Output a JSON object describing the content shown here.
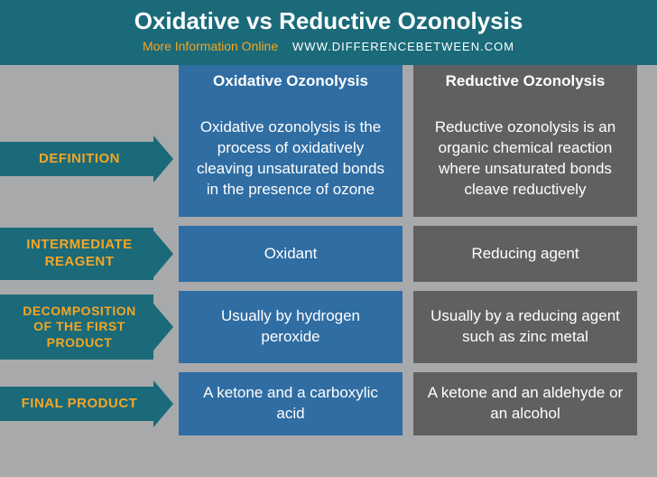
{
  "header": {
    "title": "Oxidative vs Reductive Ozonolysis",
    "tagline": "More Information Online",
    "url": "WWW.DIFFERENCEBETWEEN.COM"
  },
  "columns": {
    "oxidative": "Oxidative Ozonolysis",
    "reductive": "Reductive Ozonolysis"
  },
  "rows": [
    {
      "label": "DEFINITION",
      "ox": "Oxidative ozonolysis is the process of oxidatively cleaving unsaturated bonds in the presence of ozone",
      "red": "Reductive ozonolysis is an organic chemical reaction where unsaturated bonds cleave reductively"
    },
    {
      "label": "INTERMEDIATE REAGENT",
      "ox": "Oxidant",
      "red": "Reducing agent"
    },
    {
      "label": "DECOMPOSITION OF THE FIRST PRODUCT",
      "ox": "Usually by hydrogen peroxide",
      "red": "Usually by a reducing agent such as zinc metal"
    },
    {
      "label": "FINAL PRODUCT",
      "ox": "A ketone and a carboxylic acid",
      "red": "A ketone and an aldehyde or an alcohol"
    }
  ],
  "colors": {
    "header_bg": "#1a6a7a",
    "accent": "#f5a623",
    "ox_bg": "#2f6da3",
    "red_bg": "#5f6062",
    "page_bg": "#a8a9ab",
    "text": "#ffffff"
  }
}
